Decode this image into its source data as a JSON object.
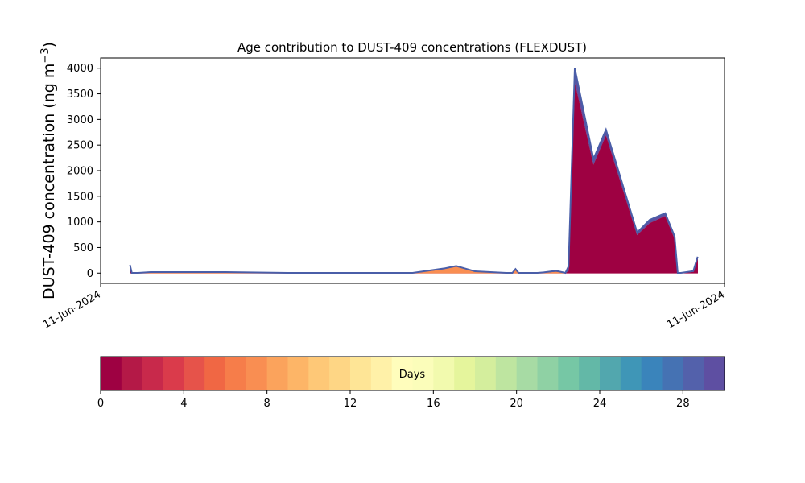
{
  "chart_data": {
    "type": "area",
    "title": "Age contribution to DUST-409 concentrations (FLEXDUST)",
    "xlabel": "",
    "ylabel": "DUST-409 concentration (ng m",
    "ylabel_sup": "−3",
    "ylabel_close": ")",
    "ylim": [
      -200,
      4200
    ],
    "yticks": [
      0,
      500,
      1000,
      1500,
      2000,
      2500,
      3000,
      3500,
      4000
    ],
    "xticks": [
      "11-Jun-2024",
      "11-Jun-2024"
    ],
    "grid": false,
    "stacked": true,
    "series": [
      {
        "age_days": "0-1",
        "color": "#9e0142",
        "values": [
          [
            4.7,
            150
          ],
          [
            5.0,
            0
          ],
          [
            6.0,
            0
          ],
          [
            8.0,
            0
          ],
          [
            20.0,
            0
          ],
          [
            30.0,
            0
          ],
          [
            40.0,
            0
          ],
          [
            50.0,
            0
          ],
          [
            55.0,
            0
          ],
          [
            57.0,
            0
          ],
          [
            60.0,
            0
          ],
          [
            65.0,
            0
          ],
          [
            66.0,
            0
          ],
          [
            66.5,
            0
          ],
          [
            67.0,
            0
          ],
          [
            68.0,
            0
          ],
          [
            69.0,
            0
          ],
          [
            70.0,
            0
          ],
          [
            71.0,
            0
          ],
          [
            72.0,
            0
          ],
          [
            73.0,
            0
          ],
          [
            74.5,
            0
          ],
          [
            75.0,
            50
          ],
          [
            76.0,
            3750
          ],
          [
            79.0,
            2130
          ],
          [
            81.0,
            2700
          ],
          [
            86.0,
            750
          ],
          [
            88.0,
            980
          ],
          [
            90.5,
            1120
          ],
          [
            92.0,
            680
          ],
          [
            92.5,
            0
          ],
          [
            93.0,
            0
          ],
          [
            95.0,
            30
          ],
          [
            95.7,
            280
          ]
        ]
      },
      {
        "age_days": "6-7",
        "color": "#f98e52",
        "values": [
          [
            4.7,
            0
          ],
          [
            5.0,
            0
          ],
          [
            6.0,
            0
          ],
          [
            8.0,
            15
          ],
          [
            20.0,
            15
          ],
          [
            30.0,
            0
          ],
          [
            40.0,
            0
          ],
          [
            50.0,
            0
          ],
          [
            55.0,
            80
          ],
          [
            57.0,
            130
          ],
          [
            60.0,
            30
          ],
          [
            65.0,
            0
          ],
          [
            66.0,
            0
          ],
          [
            66.5,
            60
          ],
          [
            67.0,
            0
          ],
          [
            68.0,
            0
          ],
          [
            69.0,
            0
          ],
          [
            70.0,
            0
          ],
          [
            71.0,
            10
          ],
          [
            72.0,
            20
          ],
          [
            73.0,
            30
          ],
          [
            74.5,
            0
          ],
          [
            75.0,
            0
          ],
          [
            76.0,
            0
          ],
          [
            79.0,
            0
          ],
          [
            81.0,
            0
          ],
          [
            86.0,
            0
          ],
          [
            88.0,
            0
          ],
          [
            90.5,
            0
          ],
          [
            92.0,
            0
          ],
          [
            92.5,
            0
          ],
          [
            93.0,
            0
          ],
          [
            95.0,
            0
          ],
          [
            95.7,
            0
          ]
        ]
      },
      {
        "age_days": "29-30",
        "color": "#5e4fa2",
        "values": [
          [
            4.7,
            10
          ],
          [
            5.0,
            5
          ],
          [
            6.0,
            5
          ],
          [
            8.0,
            5
          ],
          [
            20.0,
            5
          ],
          [
            30.0,
            5
          ],
          [
            40.0,
            5
          ],
          [
            50.0,
            5
          ],
          [
            55.0,
            10
          ],
          [
            57.0,
            10
          ],
          [
            60.0,
            5
          ],
          [
            65.0,
            5
          ],
          [
            66.0,
            5
          ],
          [
            66.5,
            20
          ],
          [
            67.0,
            5
          ],
          [
            68.0,
            5
          ],
          [
            69.0,
            5
          ],
          [
            70.0,
            5
          ],
          [
            71.0,
            5
          ],
          [
            72.0,
            10
          ],
          [
            73.0,
            15
          ],
          [
            74.5,
            5
          ],
          [
            75.0,
            80
          ],
          [
            76.0,
            250
          ],
          [
            79.0,
            100
          ],
          [
            81.0,
            100
          ],
          [
            86.0,
            40
          ],
          [
            88.0,
            60
          ],
          [
            90.5,
            50
          ],
          [
            92.0,
            40
          ],
          [
            92.5,
            5
          ],
          [
            93.0,
            5
          ],
          [
            95.0,
            10
          ],
          [
            95.7,
            40
          ]
        ]
      }
    ]
  },
  "colorbar": {
    "label": "Days",
    "ticks": [
      "0",
      "4",
      "8",
      "12",
      "16",
      "20",
      "24",
      "28"
    ],
    "tick_values": [
      0,
      4,
      8,
      12,
      16,
      20,
      24,
      28
    ],
    "range": [
      0,
      30
    ],
    "colors": [
      "#9e0142",
      "#b41947",
      "#c8294b",
      "#da3b4b",
      "#e6534a",
      "#f06744",
      "#f67d4a",
      "#f98e52",
      "#fba35c",
      "#fdb567",
      "#fec877",
      "#fed685",
      "#fee596",
      "#fff1a8",
      "#fffdbc",
      "#fbfdba",
      "#f2faae",
      "#e5f59c",
      "#d4ee9d",
      "#bee5a0",
      "#a7dba4",
      "#8fd1a4",
      "#76c7a5",
      "#63b8a7",
      "#52a7ae",
      "#3f96b7",
      "#3a84bb",
      "#4572b3",
      "#5361ab",
      "#5e4fa2"
    ]
  }
}
